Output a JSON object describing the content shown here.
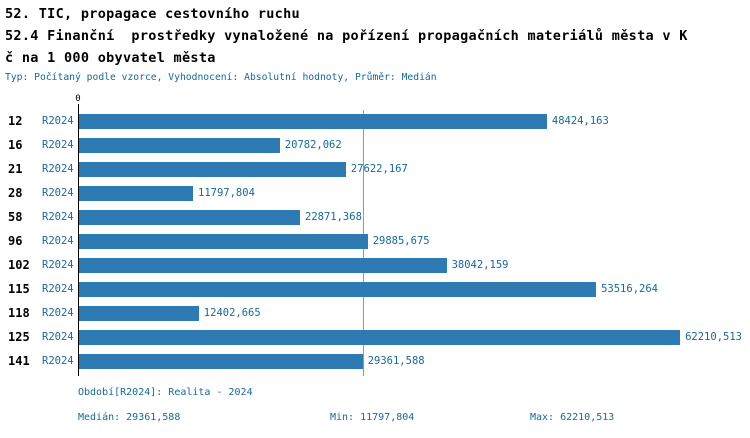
{
  "header": {
    "line1": "52. TIC, propagace cestovního ruchu",
    "line2": "52.4 Finanční  prostředky vynaložené na pořízení propagačních materiálů města v K",
    "line3": "č na 1 000 obyvatel města",
    "meta": "Typ: Počítaný podle vzorce, Vyhodnocení: Absolutní hodnoty, Průměr: Medián"
  },
  "chart_data": {
    "type": "bar",
    "orientation": "horizontal",
    "title": "52.4 Finanční prostředky vynaložené na pořízení propagačních materiálů města v Kč na 1 000 obyvatel města",
    "origin_label": "0",
    "series_name": "R2024",
    "categories": [
      "12",
      "16",
      "21",
      "28",
      "58",
      "96",
      "102",
      "115",
      "118",
      "125",
      "141"
    ],
    "values": [
      48424.163,
      20782.062,
      27622.167,
      11797.804,
      22871.368,
      29885.675,
      38042.159,
      53516.264,
      12402.665,
      62210.513,
      29361.588
    ],
    "value_labels": [
      "48424,163",
      "20782,062",
      "27622,167",
      "11797,804",
      "22871,368",
      "29885,675",
      "38042,159",
      "53516,264",
      "12402,665",
      "62210,513",
      "29361,588"
    ],
    "xlim": [
      0,
      68000
    ],
    "xlabel": "",
    "ylabel": "",
    "grid": false,
    "legend_position": "none",
    "median_value": 29361.588,
    "median_label": "29361,588"
  },
  "footer": {
    "period": "Období[R2024]: Realita - 2024",
    "median": "Medián: 29361,588",
    "min": "Min: 11797,804",
    "max": "Max: 62210,513"
  },
  "colors": {
    "bar": "#2d7bb2",
    "text_blue": "#15689f",
    "median_line": "#7ba0b8",
    "axis": "#000000",
    "background": "#ffffff"
  }
}
